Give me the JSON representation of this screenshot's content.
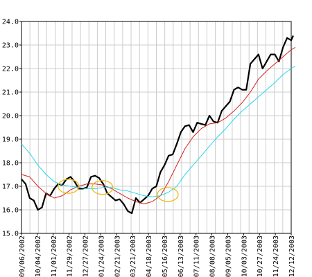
{
  "chart_data": {
    "type": "line",
    "title": "",
    "xlabel": "",
    "ylabel": "",
    "ylim": [
      15.0,
      24.0
    ],
    "grid": true,
    "legend": "none",
    "x_tick_labels": [
      "09/06/2002",
      "10/04/2002",
      "11/01/2002",
      "11/29/2002",
      "12/27/2002",
      "01/24/2003",
      "02/21/2003",
      "03/21/2003",
      "04/18/2003",
      "05/16/2003",
      "06/13/2003",
      "07/11/2003",
      "08/08/2003",
      "09/05/2003",
      "10/03/2003",
      "10/27/2003",
      "11/24/2003",
      "12/12/2003"
    ],
    "y_tick_labels": [
      "15.0",
      "16.0",
      "17.0",
      "18.0",
      "19.0",
      "20.0",
      "21.0",
      "22.0",
      "23.0",
      "24.0"
    ],
    "x_range": [
      0,
      66
    ],
    "colors": {
      "price": "#000000",
      "short_ma": "#d42020",
      "long_ma": "#22d8e8",
      "highlight": "#f0b400",
      "grid": "#cccccc",
      "axis": "#000000"
    },
    "series": [
      {
        "key": "price",
        "width": 2.2,
        "points": [
          [
            0,
            17.3
          ],
          [
            1,
            17.1
          ],
          [
            2,
            16.5
          ],
          [
            3,
            16.4
          ],
          [
            4,
            16.0
          ],
          [
            5,
            16.1
          ],
          [
            6,
            16.7
          ],
          [
            7,
            16.6
          ],
          [
            8,
            16.9
          ],
          [
            9,
            17.1
          ],
          [
            10,
            17.05
          ],
          [
            11,
            17.3
          ],
          [
            12,
            17.4
          ],
          [
            13,
            17.2
          ],
          [
            14,
            16.9
          ],
          [
            15,
            16.9
          ],
          [
            16,
            16.95
          ],
          [
            17,
            17.4
          ],
          [
            18,
            17.45
          ],
          [
            19,
            17.35
          ],
          [
            20,
            17.1
          ],
          [
            21,
            16.7
          ],
          [
            22,
            16.55
          ],
          [
            23,
            16.4
          ],
          [
            24,
            16.45
          ],
          [
            25,
            16.25
          ],
          [
            26,
            15.95
          ],
          [
            27,
            15.85
          ],
          [
            28,
            16.5
          ],
          [
            29,
            16.3
          ],
          [
            30,
            16.45
          ],
          [
            31,
            16.6
          ],
          [
            32,
            16.9
          ],
          [
            33,
            17.0
          ],
          [
            34,
            17.6
          ],
          [
            35,
            17.9
          ],
          [
            36,
            18.3
          ],
          [
            37,
            18.35
          ],
          [
            38,
            18.8
          ],
          [
            39,
            19.3
          ],
          [
            40,
            19.55
          ],
          [
            41,
            19.6
          ],
          [
            42,
            19.3
          ],
          [
            43,
            19.7
          ],
          [
            44,
            19.65
          ],
          [
            45,
            19.6
          ],
          [
            46,
            20.0
          ],
          [
            47,
            19.75
          ],
          [
            48,
            19.7
          ],
          [
            49,
            20.2
          ],
          [
            50,
            20.4
          ],
          [
            51,
            20.6
          ],
          [
            52,
            21.1
          ],
          [
            53,
            21.2
          ],
          [
            54,
            21.1
          ],
          [
            55,
            21.1
          ],
          [
            56,
            22.2
          ],
          [
            57,
            22.4
          ],
          [
            58,
            22.6
          ],
          [
            59,
            22.0
          ],
          [
            60,
            22.3
          ],
          [
            61,
            22.6
          ],
          [
            62,
            22.6
          ],
          [
            63,
            22.3
          ],
          [
            64,
            22.9
          ],
          [
            65,
            23.3
          ],
          [
            66,
            23.2
          ],
          [
            66.5,
            23.4
          ]
        ]
      },
      {
        "key": "short_ma",
        "width": 1,
        "points": [
          [
            0,
            17.5
          ],
          [
            2,
            17.4
          ],
          [
            4,
            17.0
          ],
          [
            6,
            16.7
          ],
          [
            8,
            16.5
          ],
          [
            10,
            16.6
          ],
          [
            12,
            16.85
          ],
          [
            14,
            17.0
          ],
          [
            16,
            17.1
          ],
          [
            18,
            17.1
          ],
          [
            20,
            17.05
          ],
          [
            22,
            16.9
          ],
          [
            24,
            16.7
          ],
          [
            26,
            16.5
          ],
          [
            28,
            16.35
          ],
          [
            30,
            16.25
          ],
          [
            32,
            16.35
          ],
          [
            34,
            16.6
          ],
          [
            36,
            17.2
          ],
          [
            38,
            17.9
          ],
          [
            40,
            18.6
          ],
          [
            42,
            19.1
          ],
          [
            44,
            19.45
          ],
          [
            46,
            19.65
          ],
          [
            48,
            19.7
          ],
          [
            50,
            19.9
          ],
          [
            52,
            20.2
          ],
          [
            54,
            20.55
          ],
          [
            56,
            21.0
          ],
          [
            58,
            21.55
          ],
          [
            60,
            21.9
          ],
          [
            62,
            22.2
          ],
          [
            64,
            22.5
          ],
          [
            66,
            22.8
          ],
          [
            67,
            22.9
          ]
        ]
      },
      {
        "key": "long_ma",
        "width": 1,
        "points": [
          [
            0,
            18.8
          ],
          [
            2,
            18.4
          ],
          [
            4,
            17.9
          ],
          [
            6,
            17.5
          ],
          [
            8,
            17.2
          ],
          [
            10,
            17.05
          ],
          [
            12,
            17.0
          ],
          [
            14,
            16.95
          ],
          [
            16,
            16.9
          ],
          [
            18,
            16.9
          ],
          [
            20,
            16.95
          ],
          [
            22,
            16.95
          ],
          [
            24,
            16.85
          ],
          [
            26,
            16.8
          ],
          [
            28,
            16.7
          ],
          [
            30,
            16.6
          ],
          [
            32,
            16.55
          ],
          [
            34,
            16.6
          ],
          [
            36,
            16.75
          ],
          [
            38,
            17.0
          ],
          [
            40,
            17.5
          ],
          [
            42,
            17.9
          ],
          [
            44,
            18.3
          ],
          [
            46,
            18.7
          ],
          [
            48,
            19.1
          ],
          [
            50,
            19.45
          ],
          [
            52,
            19.85
          ],
          [
            54,
            20.2
          ],
          [
            56,
            20.5
          ],
          [
            58,
            20.8
          ],
          [
            60,
            21.1
          ],
          [
            62,
            21.4
          ],
          [
            64,
            21.75
          ],
          [
            66,
            22.0
          ],
          [
            67,
            22.1
          ]
        ]
      }
    ],
    "crossover_markers": [
      {
        "x": 11.5,
        "y": 17.0
      },
      {
        "x": 19.8,
        "y": 16.95
      },
      {
        "x": 35.8,
        "y": 16.65
      }
    ]
  }
}
